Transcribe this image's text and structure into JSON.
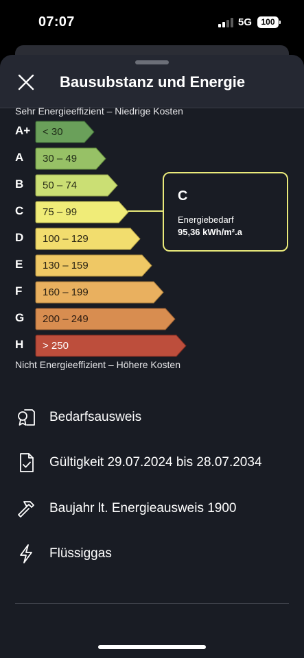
{
  "status_bar": {
    "time": "07:07",
    "network": "5G",
    "battery": "100"
  },
  "sheet": {
    "title": "Bausubstanz und Energie",
    "close_icon": "close-icon"
  },
  "energy_scale": {
    "top_label": "Sehr Energieeffizient – Niedrige Kosten",
    "bottom_label": "Nicht Energieeffizient – Höhere Kosten",
    "classes": [
      {
        "label": "A+",
        "range": "< 30",
        "color": "#6aa05a",
        "text_color": "#1d2a17"
      },
      {
        "label": "A",
        "range": "30 – 49",
        "color": "#97c166",
        "text_color": "#1f2a16"
      },
      {
        "label": "B",
        "range": "50 – 74",
        "color": "#cbdf74",
        "text_color": "#262a15"
      },
      {
        "label": "C",
        "range": "75 – 99",
        "color": "#f0ec78",
        "text_color": "#2a2a15"
      },
      {
        "label": "D",
        "range": "100 – 129",
        "color": "#f2dd6e",
        "text_color": "#2a2614"
      },
      {
        "label": "E",
        "range": "130 – 159",
        "color": "#efc865",
        "text_color": "#2a2313"
      },
      {
        "label": "F",
        "range": "160 – 199",
        "color": "#e9b05f",
        "text_color": "#2a2012"
      },
      {
        "label": "G",
        "range": "200 – 249",
        "color": "#d88d50",
        "text_color": "#2a1a10"
      },
      {
        "label": "H",
        "range": "> 250",
        "color": "#bd4e3c",
        "text_color": "#ffffff"
      }
    ]
  },
  "callout": {
    "class": "C",
    "label": "Energiebedarf",
    "value": "95,36 kWh/m².a",
    "border_color": "#eaea7a"
  },
  "info_items": [
    {
      "icon": "certificate-icon",
      "text": "Bedarfsausweis"
    },
    {
      "icon": "document-check-icon",
      "text": "Gültigkeit 29.07.2024 bis 28.07.2034"
    },
    {
      "icon": "hammer-icon",
      "text": "Baujahr lt. Energieausweis 1900"
    },
    {
      "icon": "lightning-icon",
      "text": "Flüssiggas"
    }
  ]
}
